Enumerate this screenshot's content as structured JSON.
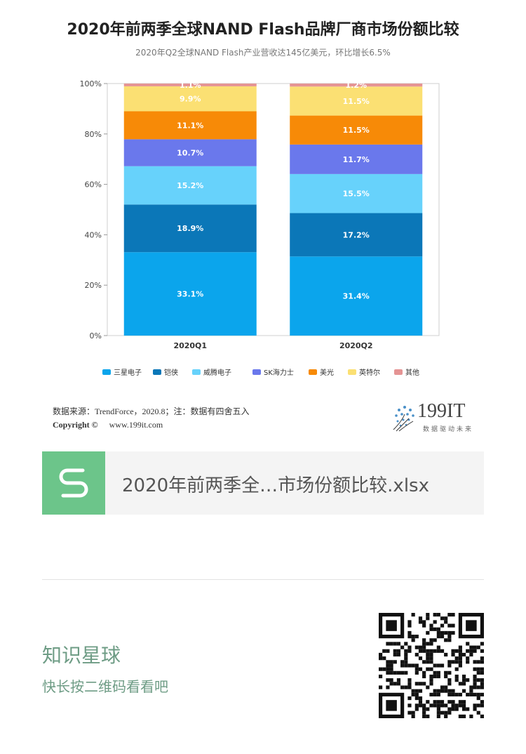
{
  "title": "2020年前两季全球NAND Flash品牌厂商市场份额比较",
  "subtitle": "2020年Q2全球NAND Flash产业营收达145亿美元，环比增长6.5%",
  "chart_data": {
    "type": "bar",
    "stacked": true,
    "categories": [
      "2020Q1",
      "2020Q2"
    ],
    "ylim": [
      0,
      100
    ],
    "yticks": [
      "0%",
      "20%",
      "40%",
      "60%",
      "80%",
      "100%"
    ],
    "legend_position": "bottom",
    "series": [
      {
        "name": "三星电子",
        "color": "#0ba5ec",
        "values": [
          33.1,
          31.4
        ],
        "labels": [
          "33.1%",
          "31.4%"
        ]
      },
      {
        "name": "铠侠",
        "color": "#0b77b8",
        "values": [
          18.9,
          17.2
        ],
        "labels": [
          "18.9%",
          "17.2%"
        ]
      },
      {
        "name": "威腾电子",
        "color": "#67d2fb",
        "values": [
          15.2,
          15.5
        ],
        "labels": [
          "15.2%",
          "15.5%"
        ]
      },
      {
        "name": "SK海力士",
        "color": "#6a78ec",
        "values": [
          10.7,
          11.7
        ],
        "labels": [
          "10.7%",
          "11.7%"
        ]
      },
      {
        "name": "美光",
        "color": "#f78a07",
        "values": [
          11.1,
          11.5
        ],
        "labels": [
          "11.1%",
          "11.5%"
        ]
      },
      {
        "name": "英特尔",
        "color": "#fbe073",
        "values": [
          9.9,
          11.5
        ],
        "labels": [
          "9.9%",
          "11.5%"
        ]
      },
      {
        "name": "其他",
        "color": "#e59494",
        "values": [
          1.1,
          1.2
        ],
        "labels": [
          "1.1%",
          "1.2%"
        ]
      }
    ]
  },
  "source": {
    "line1": "数据来源：TrendForce，2020.8；注：数据有四舍五入",
    "copyright": "Copyright ©",
    "site": "www.199it.com"
  },
  "logo": {
    "text": "199IT",
    "tagline": "数据驱动未来",
    "color": "#4a90c8"
  },
  "file": {
    "name": "2020年前两季全…市场份额比较.xlsx",
    "icon_color": "#6cc58a"
  },
  "footer": {
    "title": "知识星球",
    "subtitle": "快长按二维码看看吧"
  },
  "qr": {
    "icon": "qr-code-icon"
  }
}
